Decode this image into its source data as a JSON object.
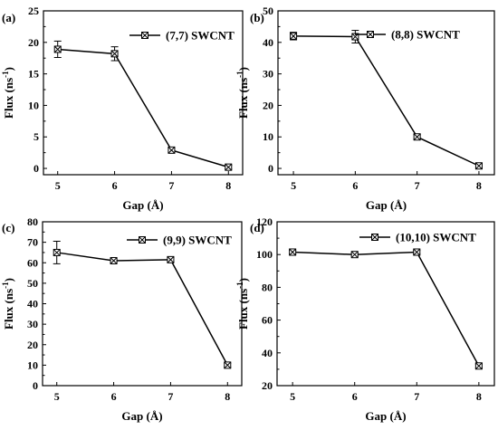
{
  "chart_data": [
    {
      "panel": "(a)",
      "type": "line",
      "x": [
        5,
        6,
        7,
        8
      ],
      "xlabel": "Gap (Å)",
      "ylabel_main": "Flux (ns",
      "ylabel_sup": "-1",
      "ylabel_close": ")",
      "xticks": [
        "5",
        "6",
        "7",
        "8"
      ],
      "yticks": [
        "0",
        "5",
        "10",
        "15",
        "20",
        "25"
      ],
      "ylim": [
        -1,
        25
      ],
      "series": [
        {
          "name": "(7,7) SWCNT",
          "values": [
            18.9,
            18.2,
            2.9,
            0.2
          ],
          "errors": [
            1.3,
            1.1,
            0.3,
            0.3
          ]
        }
      ]
    },
    {
      "panel": "(b)",
      "type": "line",
      "x": [
        5,
        6,
        7,
        8
      ],
      "xlabel": "Gap (Å)",
      "ylabel_main": "Flux (ns",
      "ylabel_sup": "-1",
      "ylabel_close": ")",
      "xticks": [
        "5",
        "6",
        "7",
        "8"
      ],
      "yticks": [
        "0",
        "10",
        "20",
        "30",
        "40",
        "50"
      ],
      "ylim": [
        -2,
        50
      ],
      "series": [
        {
          "name": "(8,8) SWCNT",
          "values": [
            42.0,
            41.8,
            10.0,
            0.8
          ],
          "errors": [
            1.2,
            2.0,
            0.7,
            0.7
          ]
        }
      ]
    },
    {
      "panel": "(c)",
      "type": "line",
      "x": [
        5,
        6,
        7,
        8
      ],
      "xlabel": "Gap (Å)",
      "ylabel_main": "Flux (ns",
      "ylabel_sup": "-1",
      "ylabel_close": ")",
      "xticks": [
        "5",
        "6",
        "7",
        "8"
      ],
      "yticks": [
        "0",
        "10",
        "20",
        "30",
        "40",
        "50",
        "60",
        "70",
        "80"
      ],
      "ylim": [
        0,
        80
      ],
      "series": [
        {
          "name": "(9,9) SWCNT",
          "values": [
            65.0,
            61.0,
            61.5,
            10.0
          ],
          "errors": [
            5.5,
            1.0,
            1.0,
            1.0
          ]
        }
      ]
    },
    {
      "panel": "(d)",
      "type": "line",
      "x": [
        5,
        6,
        7,
        8
      ],
      "xlabel": "Gap (Å)",
      "ylabel_main": "Flux (ns",
      "ylabel_sup": "-1",
      "ylabel_close": ")",
      "xticks": [
        "5",
        "6",
        "7",
        "8"
      ],
      "yticks": [
        "20",
        "40",
        "60",
        "80",
        "100",
        "120"
      ],
      "ylim": [
        20,
        120
      ],
      "series": [
        {
          "name": "(10,10) SWCNT",
          "values": [
            101.5,
            100.0,
            101.5,
            32.0
          ],
          "errors": [
            1.0,
            1.0,
            1.0,
            1.2
          ]
        }
      ]
    }
  ]
}
